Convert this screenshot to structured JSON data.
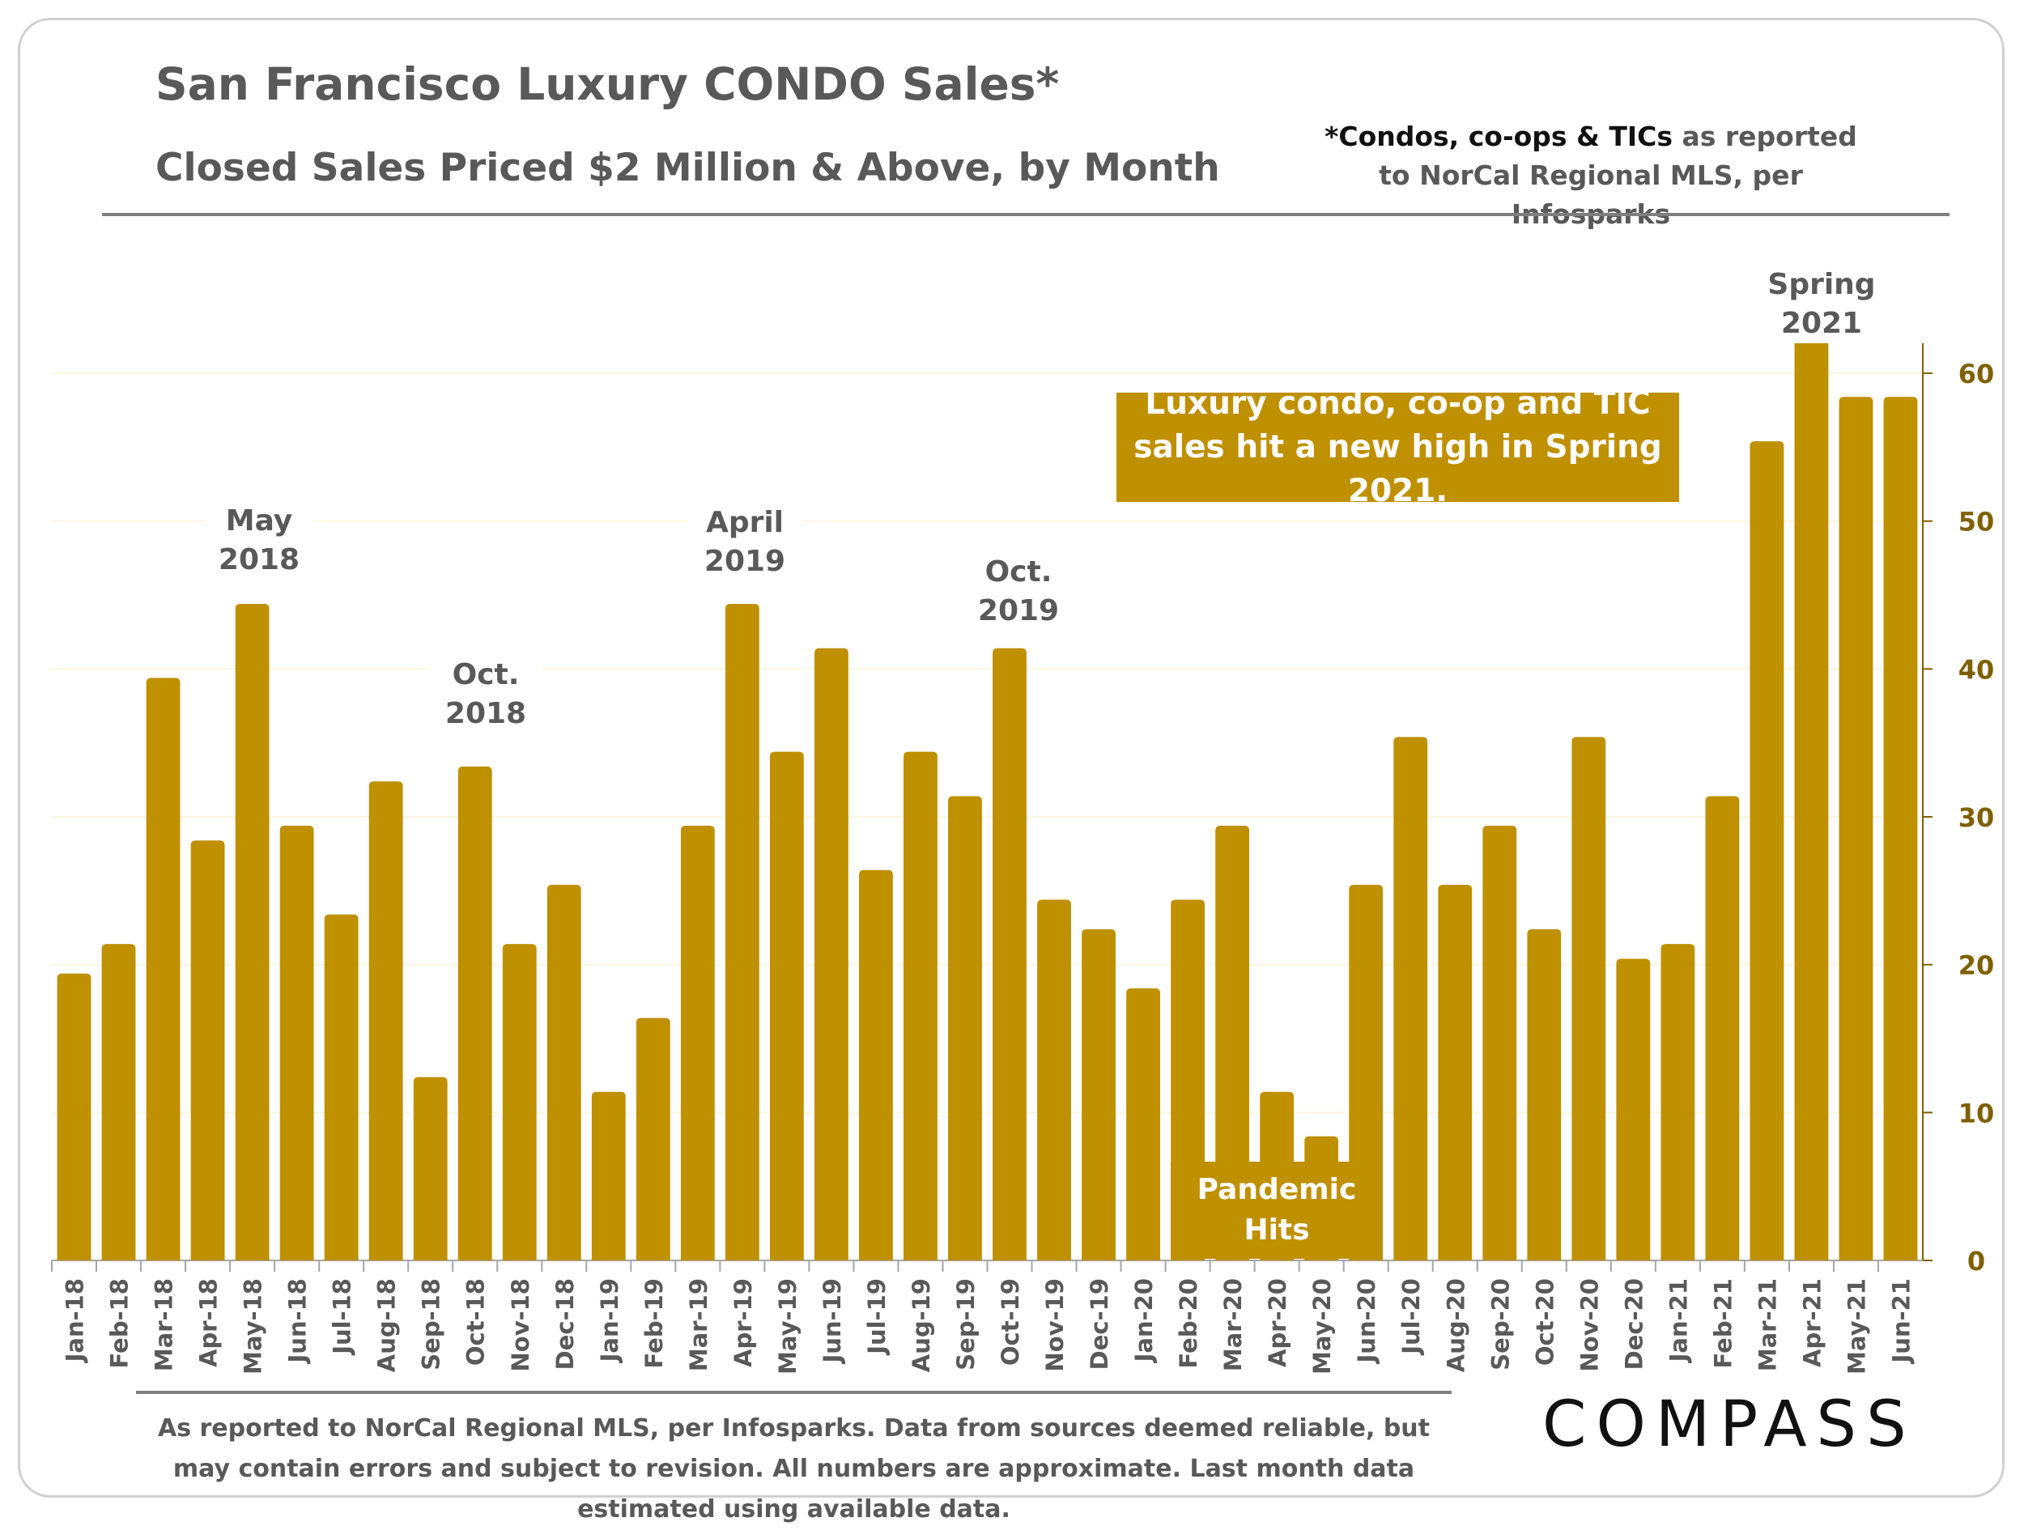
{
  "header": {
    "title": "San Francisco Luxury CONDO Sales*",
    "subtitle": "Closed Sales Priced $2 Million & Above, by Month",
    "note_bold": "*Condos, co-ops & TICs",
    "note_rest": " as reported to NorCal Regional MLS, per Infosparks"
  },
  "annotations": {
    "may2018": "May 2018",
    "oct2018": "Oct. 2018",
    "apr2019": "April 2019",
    "oct2019": "Oct. 2019",
    "spring2021": "Spring 2021",
    "pandemic": "Pandemic Hits",
    "callout": "Luxury condo, co-op and TIC sales hit a new high in Spring 2021."
  },
  "footer": {
    "text": "As reported to NorCal Regional MLS, per Infosparks. Data from sources deemed reliable, but may contain errors and subject to revision. All numbers are approximate. Last month data estimated using available data.",
    "logo": "COMPASS"
  },
  "colors": {
    "bar": "#bf9000",
    "axis_label": "#7f6000",
    "text": "#595959"
  },
  "chart_data": {
    "type": "bar",
    "title": "San Francisco Luxury CONDO Sales*",
    "subtitle": "Closed Sales Priced $2 Million & Above, by Month",
    "xlabel": "",
    "ylabel": "",
    "ylim": [
      0,
      64
    ],
    "yticks": [
      0,
      10,
      20,
      30,
      40,
      50,
      60
    ],
    "y_axis_side": "right",
    "grid": true,
    "categories": [
      "Jan-18",
      "Feb-18",
      "Mar-18",
      "Apr-18",
      "May-18",
      "Jun-18",
      "Jul-18",
      "Aug-18",
      "Sep-18",
      "Oct-18",
      "Nov-18",
      "Dec-18",
      "Jan-19",
      "Feb-19",
      "Mar-19",
      "Apr-19",
      "May-19",
      "Jun-19",
      "Jul-19",
      "Aug-19",
      "Sep-19",
      "Oct-19",
      "Nov-19",
      "Dec-19",
      "Jan-20",
      "Feb-20",
      "Mar-20",
      "Apr-20",
      "May-20",
      "Jun-20",
      "Jul-20",
      "Aug-20",
      "Sep-20",
      "Oct-20",
      "Nov-20",
      "Dec-20",
      "Jan-21",
      "Feb-21",
      "Mar-21",
      "Apr-21",
      "May-21",
      "Jun-21"
    ],
    "values": [
      19,
      21,
      39,
      28,
      44,
      29,
      23,
      32,
      12,
      33,
      21,
      25,
      11,
      16,
      29,
      44,
      34,
      41,
      26,
      34,
      31,
      41,
      24,
      22,
      18,
      24,
      29,
      11,
      8,
      25,
      35,
      25,
      29,
      22,
      35,
      20,
      21,
      31,
      55,
      62,
      58,
      58
    ]
  }
}
